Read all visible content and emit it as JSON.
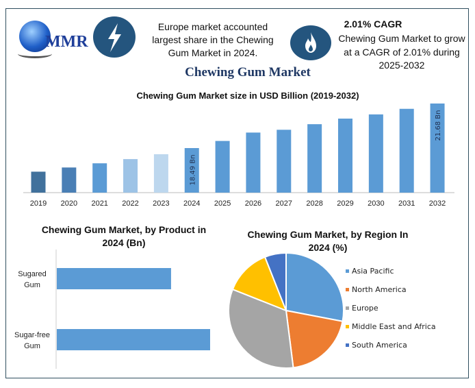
{
  "header": {
    "logo_text": "MMR",
    "info_left": "Europe market accounted largest share in the Chewing Gum Market in 2024.",
    "cagr_title": "2.01% CAGR",
    "info_right": "Chewing Gum Market to grow at a CAGR of 2.01% during 2025-2032",
    "main_title": "Chewing Gum Market",
    "icons": [
      "globe-logo-icon",
      "lightning-icon",
      "flame-icon"
    ]
  },
  "chart_data": [
    {
      "type": "bar",
      "title": "Chewing Gum Market size in USD Billion (2019-2032)",
      "categories": [
        "2019",
        "2020",
        "2021",
        "2022",
        "2023",
        "2024",
        "2025",
        "2026",
        "2027",
        "2028",
        "2029",
        "2030",
        "2031",
        "2032"
      ],
      "values": [
        16.8,
        17.1,
        17.4,
        17.7,
        18.05,
        18.49,
        19.0,
        19.6,
        19.8,
        20.2,
        20.6,
        20.9,
        21.3,
        21.68
      ],
      "data_labels": {
        "2024": "18.49 Bn",
        "2032": "21.68 Bn"
      },
      "colors": [
        "#41719c",
        "#4a7fb5",
        "#5b9bd5",
        "#9dc3e6",
        "#bdd7ee",
        "#5b9bd5",
        "#5b9bd5",
        "#5b9bd5",
        "#5b9bd5",
        "#5b9bd5",
        "#5b9bd5",
        "#5b9bd5",
        "#5b9bd5",
        "#5b9bd5"
      ],
      "ylim": [
        15.3,
        21.68
      ],
      "grid": false
    },
    {
      "type": "bar",
      "orientation": "horizontal",
      "title": "Chewing Gum Market, by Product in 2024 (Bn)",
      "categories": [
        "Sugared Gum",
        "Sugar-free Gum"
      ],
      "values": [
        7.9,
        10.6
      ],
      "color": "#5b9bd5",
      "xlim": [
        0,
        10.6
      ],
      "grid": false
    },
    {
      "type": "pie",
      "title": "Chewing Gum Market, by Region In 2024 (%)",
      "categories": [
        "Asia Pacific",
        "North America",
        "Europe",
        "Middle East and Africa",
        "South America"
      ],
      "values": [
        28,
        20,
        33,
        13,
        6
      ],
      "colors": [
        "#5b9bd5",
        "#ed7d31",
        "#a5a5a5",
        "#ffc000",
        "#4472c4"
      ],
      "legend": "right"
    }
  ]
}
